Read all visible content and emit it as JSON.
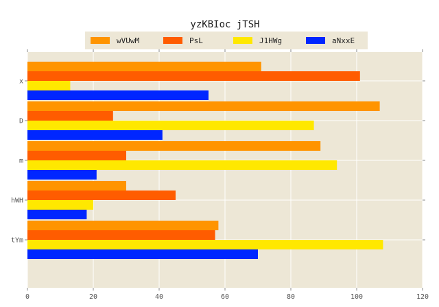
{
  "chart_data": {
    "type": "bar",
    "orientation": "horizontal",
    "title": "yzKBIoc jTSH",
    "xlabel": "",
    "ylabel": "",
    "categories": [
      "x",
      "D",
      "m",
      "hWH",
      "tYm"
    ],
    "xlim": [
      0,
      120
    ],
    "xticks": [
      "0",
      "20",
      "40",
      "60",
      "80",
      "100",
      "120"
    ],
    "grid": true,
    "legend_position": "top",
    "series": [
      {
        "name": "wVUwM",
        "color": "#ff9400",
        "values": [
          71,
          107,
          89,
          30,
          58
        ]
      },
      {
        "name": "PsL",
        "color": "#ff5c00",
        "values": [
          101,
          26,
          30,
          45,
          57
        ]
      },
      {
        "name": "J1HWg",
        "color": "#ffe800",
        "values": [
          13,
          87,
          94,
          20,
          108
        ]
      },
      {
        "name": "aNxxE",
        "color": "#0026ff",
        "values": [
          55,
          41,
          21,
          18,
          70
        ]
      }
    ],
    "background_color": "#ede7d6",
    "grid_color": "#ffffff"
  }
}
